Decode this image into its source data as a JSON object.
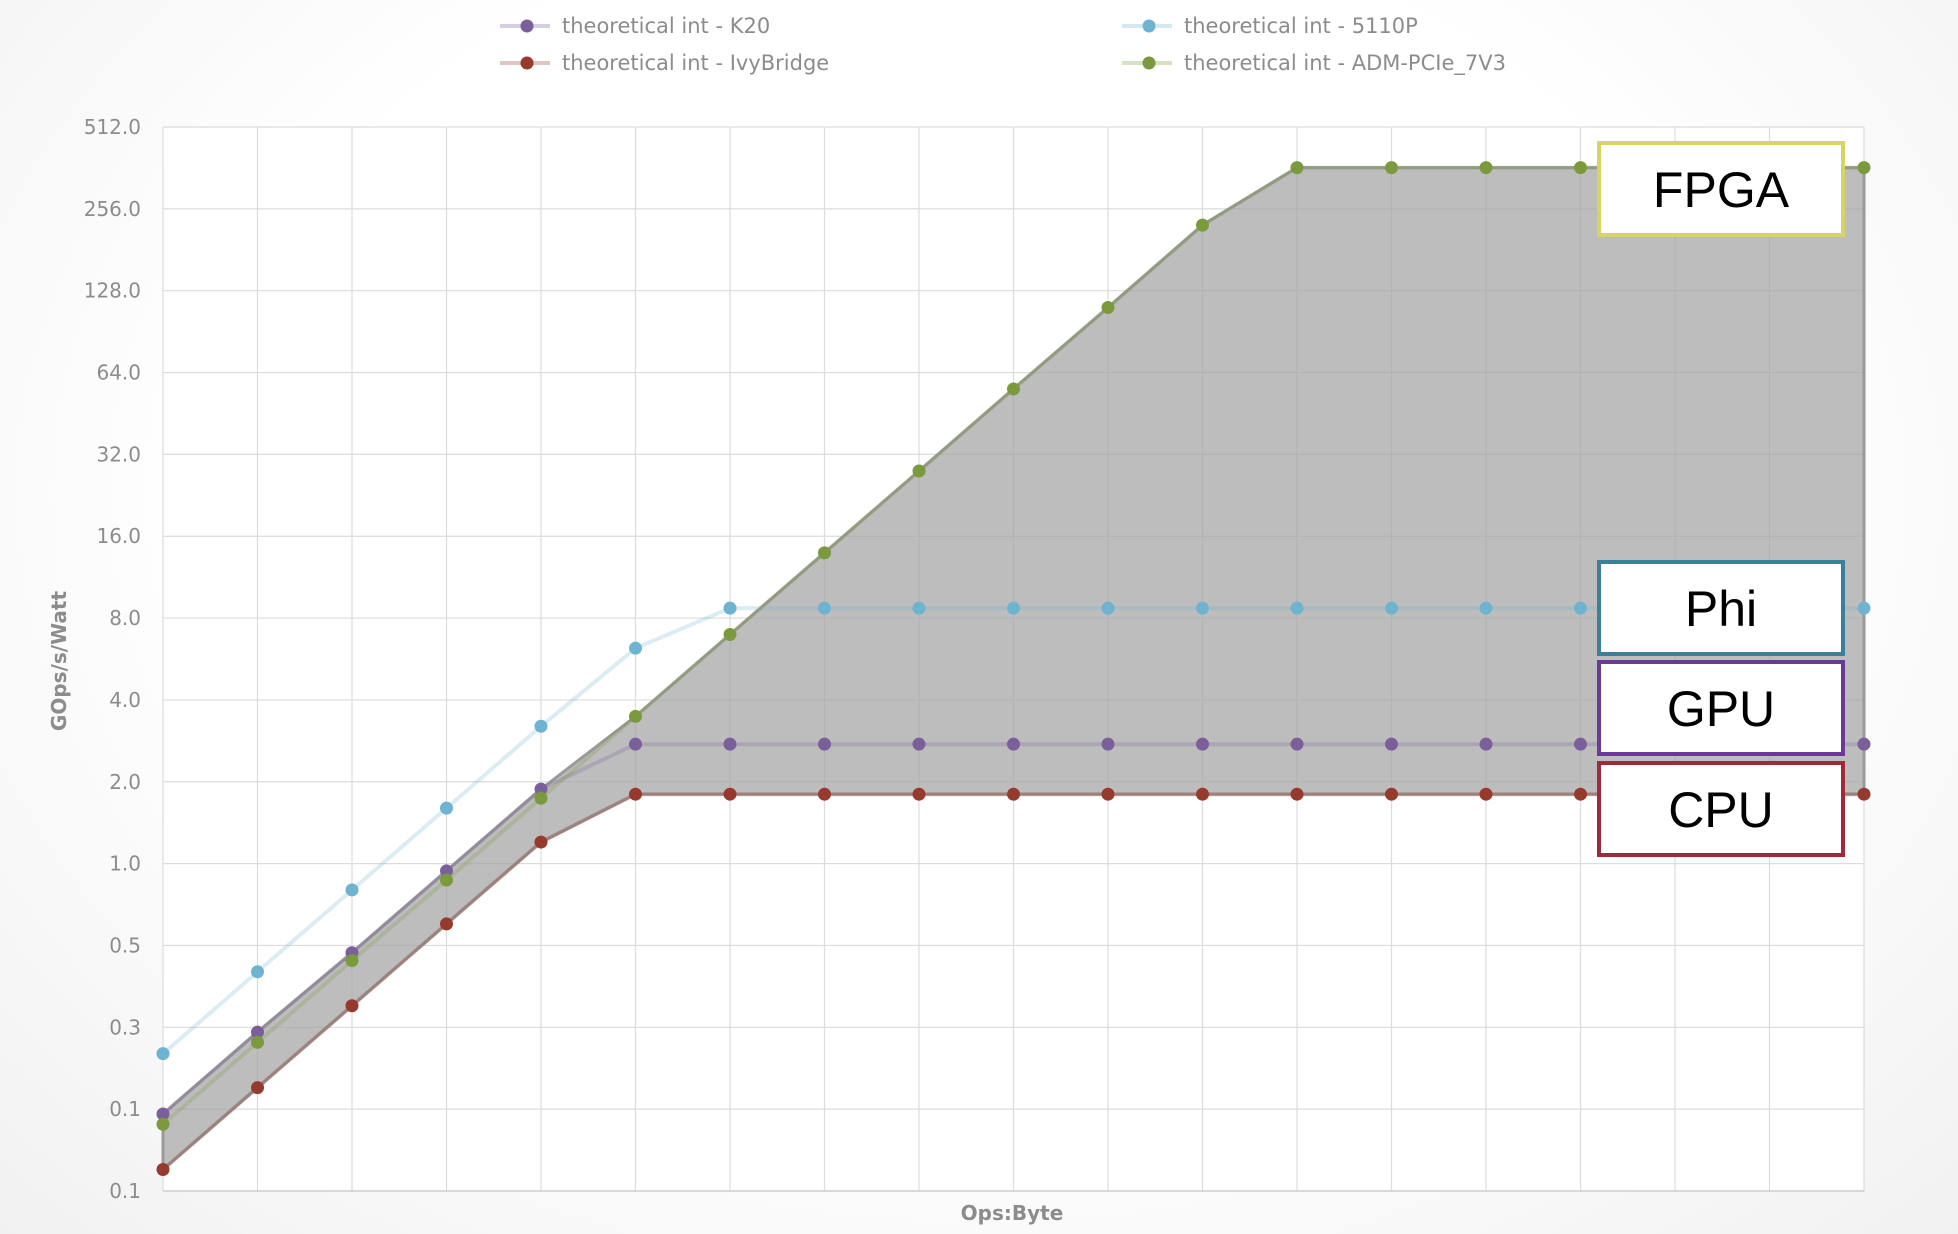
{
  "chart_data": {
    "type": "line",
    "xlabel": "Ops:Byte",
    "ylabel": "GOps/s/Watt",
    "y_scale": "log2",
    "y_ticks": [
      "0.1",
      "0.1",
      "0.3",
      "0.5",
      "1.0",
      "2.0",
      "4.0",
      "8.0",
      "16.0",
      "32.0",
      "64.0",
      "128.0",
      "256.0",
      "512.0"
    ],
    "y_tick_values": [
      0.0625,
      0.125,
      0.25,
      0.5,
      1,
      2,
      4,
      8,
      16,
      32,
      64,
      128,
      256,
      512
    ],
    "ylim": [
      0.0625,
      512
    ],
    "x_positions": 19,
    "x_tick_labels_shown": false,
    "grid": true,
    "legend": "top",
    "shaded_region": "max-min envelope of series (gray)",
    "series": [
      {
        "name": "theoretical int - K20",
        "color": "#7a5f9b",
        "x": [
          0,
          1,
          2,
          3,
          4,
          5,
          6,
          7,
          8,
          9,
          10,
          11,
          12,
          13,
          14,
          15,
          18
        ],
        "values": [
          0.12,
          0.24,
          0.47,
          0.94,
          1.88,
          2.75,
          2.75,
          2.75,
          2.75,
          2.75,
          2.75,
          2.75,
          2.75,
          2.75,
          2.75,
          2.75,
          2.75
        ]
      },
      {
        "name": "theoretical int - IvyBridge",
        "color": "#973a2e",
        "x": [
          0,
          1,
          2,
          3,
          4,
          5,
          6,
          7,
          8,
          9,
          10,
          11,
          12,
          13,
          14,
          15,
          18
        ],
        "values": [
          0.075,
          0.15,
          0.3,
          0.6,
          1.2,
          1.8,
          1.8,
          1.8,
          1.8,
          1.8,
          1.8,
          1.8,
          1.8,
          1.8,
          1.8,
          1.8,
          1.8
        ]
      },
      {
        "name": "theoretical int - 5110P",
        "color": "#6eb3cf",
        "x": [
          0,
          1,
          2,
          3,
          4,
          5,
          6,
          7,
          8,
          9,
          10,
          11,
          12,
          13,
          14,
          15,
          18
        ],
        "values": [
          0.2,
          0.4,
          0.8,
          1.6,
          3.2,
          6.2,
          8.7,
          8.7,
          8.7,
          8.7,
          8.7,
          8.7,
          8.7,
          8.7,
          8.7,
          8.7,
          8.7
        ]
      },
      {
        "name": "theoretical int - ADM-PCIe_7V3",
        "color": "#7b9a3e",
        "x": [
          0,
          1,
          2,
          3,
          4,
          5,
          6,
          7,
          8,
          9,
          10,
          11,
          12,
          13,
          14,
          15,
          18
        ],
        "values": [
          0.11,
          0.22,
          0.44,
          0.87,
          1.74,
          3.48,
          6.96,
          13.9,
          27.8,
          55.7,
          111,
          223,
          363,
          363,
          363,
          363,
          363
        ]
      }
    ],
    "annotations": [
      {
        "label": "FPGA",
        "border_color": "#d8d462"
      },
      {
        "label": "Phi",
        "border_color": "#3a7f9c"
      },
      {
        "label": "GPU",
        "border_color": "#6a3a96"
      },
      {
        "label": "CPU",
        "border_color": "#a02a3a"
      }
    ]
  }
}
